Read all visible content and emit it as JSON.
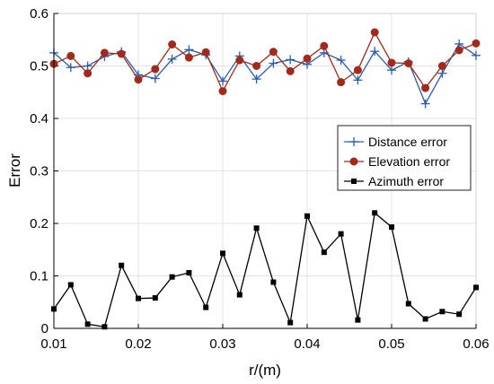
{
  "chart_data": {
    "type": "line",
    "xlabel": "r/(m)",
    "ylabel": "Error",
    "xlim": [
      0.01,
      0.06
    ],
    "ylim": [
      0,
      0.6
    ],
    "xticks": [
      "0.01",
      "0.02",
      "0.03",
      "0.04",
      "0.05",
      "0.06"
    ],
    "yticks": [
      "0",
      "0.1",
      "0.2",
      "0.3",
      "0.4",
      "0.5",
      "0.6"
    ],
    "grid": true,
    "legend_position": "right",
    "x": [
      0.01,
      0.012,
      0.014,
      0.016,
      0.018,
      0.02,
      0.022,
      0.024,
      0.026,
      0.028,
      0.03,
      0.032,
      0.034,
      0.036,
      0.038,
      0.04,
      0.042,
      0.044,
      0.046,
      0.048,
      0.05,
      0.052,
      0.054,
      0.056,
      0.058,
      0.06
    ],
    "series": [
      {
        "name": "Distance error",
        "color": "#2a5db0",
        "marker": "plus",
        "values": [
          0.525,
          0.497,
          0.5,
          0.518,
          0.527,
          0.483,
          0.476,
          0.513,
          0.531,
          0.521,
          0.471,
          0.519,
          0.475,
          0.505,
          0.512,
          0.503,
          0.525,
          0.511,
          0.473,
          0.528,
          0.492,
          0.508,
          0.428,
          0.486,
          0.542,
          0.52
        ]
      },
      {
        "name": "Elevation error",
        "color": "#a12a1a",
        "marker": "circle",
        "values": [
          0.504,
          0.519,
          0.486,
          0.525,
          0.523,
          0.474,
          0.494,
          0.541,
          0.516,
          0.526,
          0.452,
          0.511,
          0.5,
          0.527,
          0.49,
          0.514,
          0.538,
          0.469,
          0.492,
          0.564,
          0.506,
          0.505,
          0.458,
          0.5,
          0.53,
          0.543
        ]
      },
      {
        "name": "Azimuth error",
        "color": "#000000",
        "marker": "square",
        "values": [
          0.037,
          0.083,
          0.008,
          0.003,
          0.12,
          0.057,
          0.058,
          0.098,
          0.106,
          0.04,
          0.143,
          0.064,
          0.191,
          0.088,
          0.011,
          0.214,
          0.145,
          0.18,
          0.016,
          0.22,
          0.193,
          0.047,
          0.018,
          0.032,
          0.027,
          0.078
        ]
      }
    ]
  }
}
